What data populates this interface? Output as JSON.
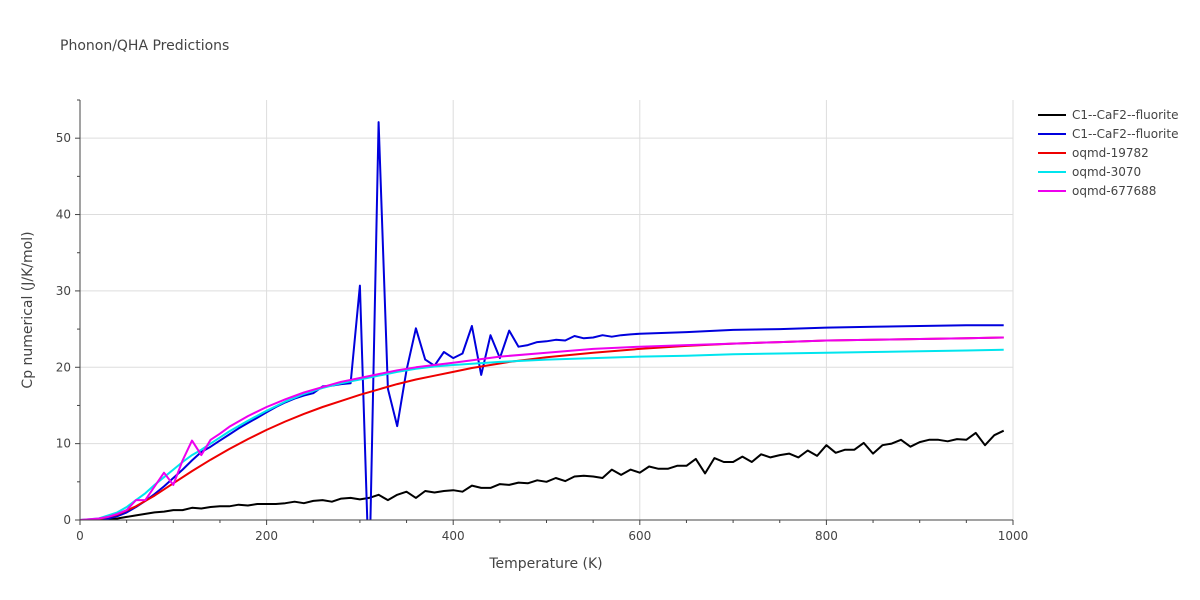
{
  "chart_data": {
    "type": "line",
    "title": "Phonon/QHA Predictions",
    "xlabel": "Temperature (K)",
    "ylabel": "Cp numerical (J/K/mol)",
    "xlim": [
      0,
      1000
    ],
    "ylim": [
      0,
      55
    ],
    "xticks": [
      0,
      200,
      400,
      600,
      800,
      1000
    ],
    "yticks": [
      0,
      10,
      20,
      30,
      40,
      50
    ],
    "grid": true,
    "legend_position": "top-right",
    "series": [
      {
        "name": "C1--CaF2--fluorite",
        "color": "#000000",
        "x": [
          0,
          10,
          20,
          30,
          40,
          50,
          60,
          70,
          80,
          90,
          100,
          110,
          120,
          130,
          140,
          150,
          160,
          170,
          180,
          190,
          200,
          210,
          220,
          230,
          240,
          250,
          260,
          270,
          280,
          290,
          300,
          310,
          320,
          330,
          340,
          350,
          360,
          370,
          380,
          390,
          400,
          410,
          420,
          430,
          440,
          450,
          460,
          470,
          480,
          490,
          500,
          510,
          520,
          530,
          540,
          550,
          560,
          570,
          580,
          590,
          600,
          610,
          620,
          630,
          640,
          650,
          660,
          670,
          680,
          690,
          700,
          710,
          720,
          730,
          740,
          750,
          760,
          770,
          780,
          790,
          800,
          810,
          820,
          830,
          840,
          850,
          860,
          870,
          880,
          890,
          900,
          910,
          920,
          930,
          940,
          950,
          960,
          970,
          980,
          990
        ],
        "y": [
          0,
          0,
          0,
          0.1,
          0.2,
          0.4,
          0.6,
          0.8,
          1.0,
          1.1,
          1.3,
          1.3,
          1.6,
          1.5,
          1.7,
          1.8,
          1.8,
          2.0,
          1.9,
          2.1,
          2.1,
          2.1,
          2.2,
          2.4,
          2.2,
          2.5,
          2.6,
          2.4,
          2.8,
          2.9,
          2.7,
          2.9,
          3.3,
          2.6,
          3.3,
          3.7,
          2.9,
          3.8,
          3.6,
          3.8,
          3.9,
          3.7,
          4.5,
          4.2,
          4.2,
          4.7,
          4.6,
          4.9,
          4.8,
          5.2,
          5.0,
          5.5,
          5.1,
          5.7,
          5.8,
          5.7,
          5.5,
          6.6,
          5.9,
          6.6,
          6.2,
          7.0,
          6.7,
          6.7,
          7.1,
          7.1,
          8.0,
          6.1,
          8.1,
          7.6,
          7.6,
          8.3,
          7.6,
          8.6,
          8.2,
          8.5,
          8.7,
          8.2,
          9.1,
          8.4,
          9.8,
          8.8,
          9.2,
          9.2,
          10.1,
          8.7,
          9.8,
          10.0,
          10.5,
          9.6,
          10.2,
          10.5,
          10.5,
          10.3,
          10.6,
          10.5,
          11.4,
          9.8,
          11.1,
          11.7
        ]
      },
      {
        "name": "C1--CaF2--fluorite",
        "color": "#0000dd",
        "x": [
          0,
          10,
          20,
          30,
          40,
          50,
          60,
          70,
          80,
          90,
          100,
          110,
          120,
          130,
          140,
          150,
          160,
          170,
          180,
          190,
          200,
          210,
          220,
          230,
          240,
          250,
          260,
          270,
          280,
          290,
          300,
          310,
          320,
          330,
          340,
          350,
          360,
          370,
          380,
          390,
          400,
          410,
          420,
          430,
          440,
          450,
          460,
          470,
          480,
          490,
          500,
          510,
          520,
          530,
          540,
          550,
          560,
          570,
          580,
          590,
          600,
          650,
          700,
          750,
          800,
          850,
          900,
          950,
          990
        ],
        "y": [
          0,
          0,
          0,
          0.2,
          0.5,
          1.0,
          1.7,
          2.5,
          3.4,
          4.4,
          5.5,
          6.6,
          7.8,
          8.9,
          9.6,
          10.4,
          11.2,
          12.0,
          12.7,
          13.4,
          14.1,
          14.8,
          15.4,
          15.9,
          16.3,
          16.6,
          17.5,
          17.6,
          17.8,
          17.9,
          30.7,
          -8.0,
          52.1,
          17.2,
          12.3,
          19.6,
          25.1,
          21.0,
          20.2,
          22.0,
          21.2,
          21.8,
          25.4,
          19.0,
          24.2,
          21.2,
          24.8,
          22.7,
          22.9,
          23.3,
          23.4,
          23.6,
          23.5,
          24.1,
          23.8,
          23.9,
          24.2,
          24.0,
          24.2,
          24.3,
          24.4,
          24.6,
          24.9,
          25.0,
          25.2,
          25.3,
          25.4,
          25.5,
          25.5
        ]
      },
      {
        "name": "oqmd-19782",
        "color": "#ee0000",
        "x": [
          0,
          20,
          40,
          60,
          80,
          100,
          120,
          140,
          160,
          180,
          200,
          220,
          240,
          260,
          280,
          300,
          320,
          340,
          360,
          380,
          400,
          420,
          440,
          460,
          480,
          500,
          550,
          600,
          650,
          700,
          750,
          800,
          850,
          900,
          950,
          990
        ],
        "y": [
          0,
          0.1,
          0.7,
          1.8,
          3.2,
          4.8,
          6.4,
          7.9,
          9.3,
          10.6,
          11.8,
          12.9,
          13.9,
          14.8,
          15.6,
          16.4,
          17.1,
          17.8,
          18.4,
          18.9,
          19.4,
          19.9,
          20.3,
          20.7,
          21.0,
          21.3,
          21.9,
          22.4,
          22.8,
          23.1,
          23.3,
          23.5,
          23.6,
          23.7,
          23.8,
          23.9
        ]
      },
      {
        "name": "oqmd-3070",
        "color": "#00e5ee",
        "x": [
          0,
          20,
          40,
          50,
          60,
          70,
          80,
          90,
          100,
          110,
          120,
          130,
          140,
          160,
          180,
          200,
          220,
          240,
          260,
          280,
          300,
          320,
          340,
          360,
          380,
          400,
          450,
          500,
          550,
          600,
          650,
          700,
          750,
          800,
          850,
          900,
          950,
          990
        ],
        "y": [
          0,
          0.2,
          1.0,
          1.7,
          2.6,
          3.5,
          4.6,
          5.6,
          6.6,
          7.6,
          8.5,
          9.2,
          10.0,
          11.6,
          13.0,
          14.3,
          15.5,
          16.5,
          17.3,
          17.9,
          18.4,
          18.9,
          19.4,
          19.8,
          20.1,
          20.3,
          20.7,
          21.0,
          21.2,
          21.4,
          21.5,
          21.7,
          21.8,
          21.9,
          22.0,
          22.1,
          22.2,
          22.3
        ]
      },
      {
        "name": "oqmd-677688",
        "color": "#ee00ee",
        "x": [
          0,
          20,
          30,
          40,
          50,
          60,
          70,
          80,
          90,
          100,
          110,
          120,
          130,
          140,
          150,
          160,
          180,
          200,
          220,
          240,
          260,
          280,
          300,
          320,
          340,
          360,
          380,
          400,
          450,
          500,
          550,
          600,
          650,
          700,
          750,
          800,
          850,
          900,
          950,
          990
        ],
        "y": [
          0,
          0.2,
          0.4,
          0.8,
          1.3,
          2.6,
          2.6,
          4.4,
          6.2,
          4.6,
          7.8,
          10.4,
          8.5,
          10.5,
          11.3,
          12.2,
          13.6,
          14.8,
          15.8,
          16.7,
          17.4,
          18.1,
          18.6,
          19.1,
          19.6,
          20.0,
          20.3,
          20.6,
          21.4,
          21.9,
          22.4,
          22.7,
          22.9,
          23.1,
          23.3,
          23.5,
          23.6,
          23.7,
          23.8,
          23.9
        ]
      }
    ]
  }
}
